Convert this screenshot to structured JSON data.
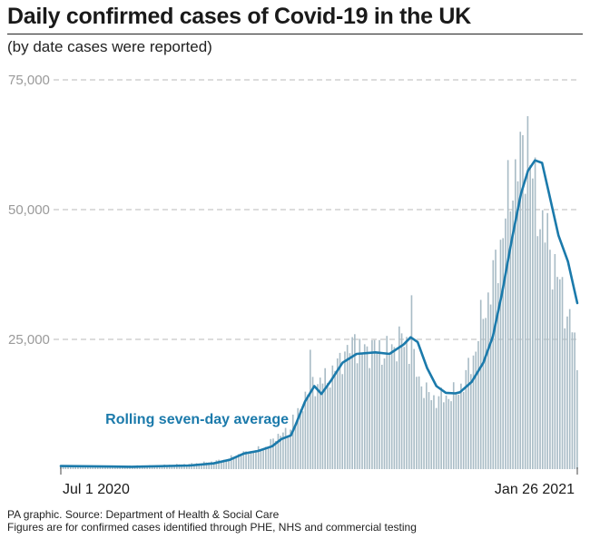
{
  "chart_data": {
    "type": "bar",
    "title": "Daily confirmed cases of Covid-19 in the UK",
    "subtitle": "(by date cases were reported)",
    "x_start": "2020-07-01",
    "x_end": "2021-01-26",
    "xtick_labels": [
      "Jul 1 2020",
      "Jan 26 2021"
    ],
    "ylim": [
      0,
      75000
    ],
    "yticks": [
      25000,
      50000,
      75000
    ],
    "ytick_labels": [
      "25,000",
      "50,000",
      "75,000"
    ],
    "grid": true,
    "series": [
      {
        "name": "Daily confirmed cases",
        "color": "#a9bcc6",
        "anchors": [
          [
            0,
            700
          ],
          [
            20,
            600
          ],
          [
            40,
            700
          ],
          [
            55,
            1000
          ],
          [
            62,
            1300
          ],
          [
            70,
            1800
          ],
          [
            76,
            2900
          ],
          [
            82,
            3500
          ],
          [
            88,
            4300
          ],
          [
            92,
            6500
          ],
          [
            96,
            7000
          ],
          [
            100,
            9000
          ],
          [
            104,
            14000
          ],
          [
            108,
            16500
          ],
          [
            112,
            17000
          ],
          [
            116,
            18500
          ],
          [
            120,
            22000
          ],
          [
            124,
            23000
          ],
          [
            128,
            22500
          ],
          [
            132,
            23500
          ],
          [
            136,
            23000
          ],
          [
            140,
            22500
          ],
          [
            144,
            25000
          ],
          [
            148,
            24000
          ],
          [
            152,
            18000
          ],
          [
            156,
            14500
          ],
          [
            160,
            13500
          ],
          [
            164,
            14000
          ],
          [
            168,
            14500
          ],
          [
            172,
            17000
          ],
          [
            176,
            22000
          ],
          [
            180,
            30000
          ],
          [
            184,
            36000
          ],
          [
            188,
            45000
          ],
          [
            192,
            55000
          ],
          [
            196,
            61000
          ],
          [
            199,
            63000
          ],
          [
            202,
            53000
          ],
          [
            206,
            46000
          ],
          [
            210,
            40000
          ],
          [
            214,
            33000
          ],
          [
            218,
            27000
          ],
          [
            220,
            20000
          ]
        ],
        "spikes": [
          [
            99,
            10500
          ],
          [
            106,
            23000
          ],
          [
            125,
            26000
          ],
          [
            149,
            33500
          ],
          [
            150,
            27500
          ],
          [
            196,
            65000
          ],
          [
            199,
            68000
          ],
          [
            201,
            56000
          ]
        ]
      },
      {
        "name": "Rolling seven-day average",
        "color": "#1b7aab",
        "label": "Rolling seven-day average",
        "points": [
          [
            0,
            600
          ],
          [
            30,
            450
          ],
          [
            55,
            700
          ],
          [
            65,
            1100
          ],
          [
            72,
            1800
          ],
          [
            78,
            3000
          ],
          [
            84,
            3500
          ],
          [
            90,
            4400
          ],
          [
            94,
            5800
          ],
          [
            98,
            6500
          ],
          [
            100,
            8500
          ],
          [
            104,
            13000
          ],
          [
            108,
            16000
          ],
          [
            111,
            14500
          ],
          [
            115,
            17000
          ],
          [
            120,
            20500
          ],
          [
            126,
            22200
          ],
          [
            134,
            22500
          ],
          [
            140,
            22200
          ],
          [
            146,
            24000
          ],
          [
            149,
            25400
          ],
          [
            152,
            24500
          ],
          [
            156,
            19500
          ],
          [
            160,
            16000
          ],
          [
            164,
            14700
          ],
          [
            168,
            14600
          ],
          [
            170,
            14800
          ],
          [
            175,
            16800
          ],
          [
            180,
            20500
          ],
          [
            184,
            25500
          ],
          [
            188,
            34000
          ],
          [
            192,
            44000
          ],
          [
            196,
            53000
          ],
          [
            199,
            57500
          ],
          [
            202,
            59500
          ],
          [
            205,
            59000
          ],
          [
            208,
            53000
          ],
          [
            212,
            45000
          ],
          [
            216,
            40000
          ],
          [
            220,
            32000
          ]
        ]
      }
    ]
  },
  "footer": {
    "source": "PA graphic. Source: Department of Health & Social Care",
    "note": "Figures are for confirmed cases identified through PHE, NHS and commercial testing"
  }
}
